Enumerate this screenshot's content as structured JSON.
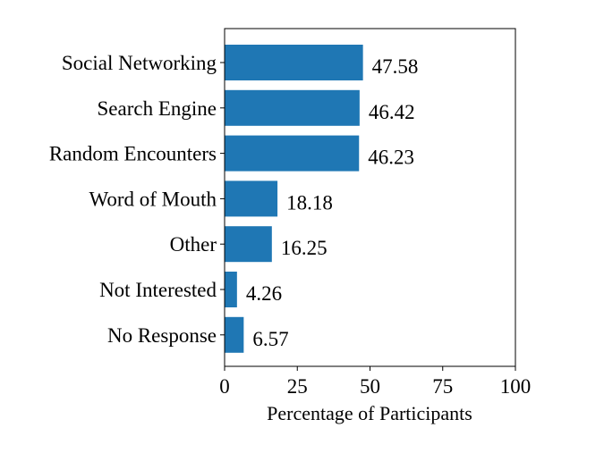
{
  "chart_data": {
    "type": "bar",
    "orientation": "horizontal",
    "categories": [
      "Social Networking",
      "Search Engine",
      "Random Encounters",
      "Word of Mouth",
      "Other",
      "Not Interested",
      "No Response"
    ],
    "values": [
      47.58,
      46.42,
      46.23,
      18.18,
      16.25,
      4.26,
      6.57
    ],
    "data_labels": [
      "47.58",
      "46.42",
      "46.23",
      "18.18",
      "16.25",
      "4.26",
      "6.57"
    ],
    "xlabel": "Percentage of Participants",
    "ylabel": "",
    "xlim": [
      0,
      100
    ],
    "xticks": [
      0,
      25,
      50,
      75,
      100
    ],
    "xtick_labels": [
      "0",
      "25",
      "50",
      "75",
      "100"
    ],
    "bar_color": "#1f77b4",
    "grid": false
  }
}
